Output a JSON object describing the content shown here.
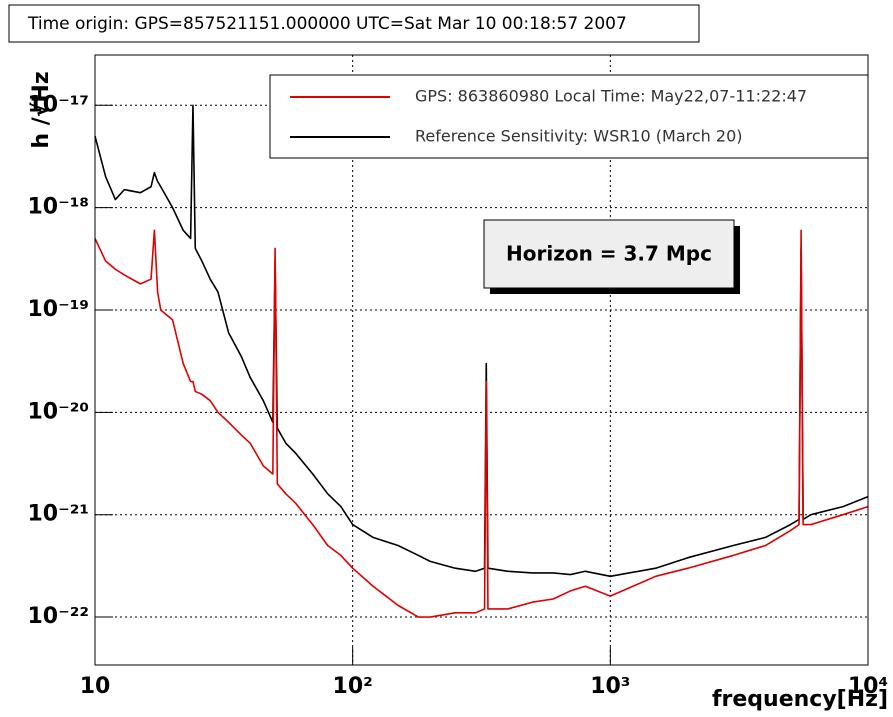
{
  "chart_data": {
    "type": "line",
    "title": "Time origin: GPS=857521151.000000 UTC=Sat Mar 10 00:18:57 2007",
    "y_label": "h /√Hz",
    "x_label": "frequency[Hz]",
    "annotation": "Horizon = 3.7 Mpc",
    "xscale": "log",
    "yscale": "log",
    "grid": true,
    "legend_position": "top-right",
    "xlim": [
      10,
      10000
    ],
    "ylim": [
      3.4e-23,
      3.1e-17
    ],
    "xticks": [
      10,
      {
        "value": 100,
        "label": "10²"
      },
      {
        "value": 1000,
        "label": "10³"
      },
      {
        "value": 10000,
        "label": "10⁴"
      }
    ],
    "yticks": [
      {
        "value": 1e-22,
        "label": "10⁻²²"
      },
      {
        "value": 1e-21,
        "label": "10⁻²¹"
      },
      {
        "value": 1e-20,
        "label": "10⁻²⁰"
      },
      {
        "value": 1e-19,
        "label": "10⁻¹⁹"
      },
      {
        "value": 1e-18,
        "label": "10⁻¹⁸"
      },
      {
        "value": 1e-17,
        "label": "10⁻¹⁷"
      }
    ],
    "x": [
      10,
      11,
      12,
      13,
      15,
      16.5,
      17,
      17.5,
      18,
      20,
      22,
      23.5,
      24,
      24.5,
      26,
      28,
      30,
      33,
      37,
      40,
      45,
      49,
      50,
      51,
      55,
      60,
      70,
      80,
      90,
      100,
      120,
      150,
      180,
      200,
      250,
      300,
      325,
      330,
      335,
      400,
      500,
      600,
      700,
      800,
      1000,
      1500,
      2000,
      3000,
      4000,
      5000,
      5400,
      5500,
      5600,
      6000,
      8000,
      10000
    ],
    "series": [
      {
        "name": "Reference Sensitivity: WSR10 (March 20)",
        "color": "#000000",
        "values": [
          5e-18,
          2e-18,
          1.2e-18,
          1.5e-18,
          1.4e-18,
          1.6e-18,
          2.2e-18,
          1.8e-18,
          1.6e-18,
          1e-18,
          6e-19,
          5e-19,
          1e-17,
          4e-19,
          3e-19,
          2e-19,
          1.5e-19,
          6e-20,
          3.5e-20,
          2.2e-20,
          1.3e-20,
          8e-21,
          3e-19,
          7e-21,
          5e-21,
          4e-21,
          2.5e-21,
          1.6e-21,
          1.2e-21,
          8e-22,
          6e-22,
          5e-22,
          4e-22,
          3.5e-22,
          3e-22,
          2.8e-22,
          3e-22,
          3e-20,
          3e-22,
          2.8e-22,
          2.7e-22,
          2.7e-22,
          2.6e-22,
          2.8e-22,
          2.5e-22,
          3e-22,
          3.8e-22,
          5e-22,
          6e-22,
          8e-22,
          9e-22,
          4e-19,
          9e-22,
          1e-21,
          1.2e-21,
          1.5e-21
        ]
      },
      {
        "name": "GPS: 863860980 Local Time: May22,07-11:22:47",
        "color": "#e00000",
        "values": [
          5e-19,
          3e-19,
          2.5e-19,
          2.2e-19,
          1.8e-19,
          2e-19,
          6e-19,
          1.5e-19,
          1e-19,
          8e-20,
          3e-20,
          2e-20,
          2e-20,
          1.6e-20,
          1.5e-20,
          1.3e-20,
          1e-20,
          8e-21,
          6e-21,
          5e-21,
          3e-21,
          2.5e-21,
          4e-19,
          2e-21,
          1.6e-21,
          1.3e-21,
          8e-22,
          5e-22,
          4e-22,
          3e-22,
          2e-22,
          1.3e-22,
          1e-22,
          1e-22,
          1.1e-22,
          1.1e-22,
          1.2e-22,
          2e-20,
          1.2e-22,
          1.2e-22,
          1.4e-22,
          1.5e-22,
          1.8e-22,
          2e-22,
          1.6e-22,
          2.5e-22,
          3e-22,
          4e-22,
          5e-22,
          7e-22,
          8e-22,
          6e-19,
          8e-22,
          8e-22,
          1e-21,
          1.2e-21
        ]
      }
    ]
  }
}
